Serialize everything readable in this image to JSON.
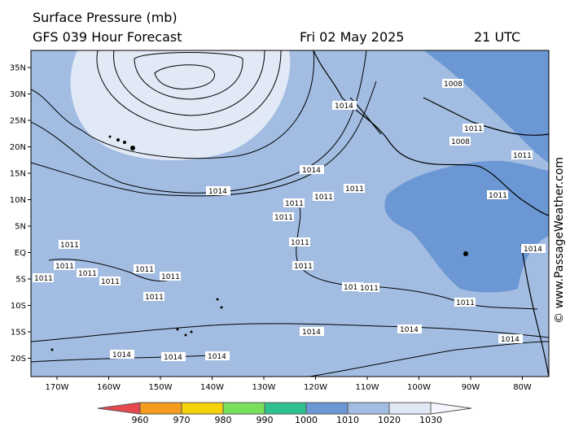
{
  "header": {
    "title_line1": "Surface Pressure (mb)",
    "title_line2": "GFS 039 Hour Forecast",
    "date": "Fri 02 May 2025",
    "time": "21 UTC"
  },
  "credit": "© www.PassageWeather.com",
  "axes": {
    "lat_labels": [
      "35N",
      "30N",
      "25N",
      "20N",
      "15N",
      "10N",
      "5N",
      "EQ",
      "5S",
      "10S",
      "15S",
      "20S"
    ],
    "lon_labels": [
      "170W",
      "160W",
      "150W",
      "140W",
      "130W",
      "120W",
      "110W",
      "100W",
      "90W",
      "80W"
    ]
  },
  "colorbar": {
    "labels": [
      "960",
      "970",
      "980",
      "990",
      "1000",
      "1010",
      "1020",
      "1030"
    ],
    "colors": [
      "#e8474d",
      "#f39c1d",
      "#f5d20a",
      "#78e05a",
      "#2fc28f",
      "#6b97d4",
      "#a3bde2",
      "#e1e9f6"
    ]
  },
  "isobar_labels": [
    "1014",
    "1014",
    "1014",
    "1011",
    "1011",
    "1011",
    "1011",
    "1011",
    "1011",
    "1011",
    "1011",
    "1011",
    "1011",
    "1011",
    "1011",
    "1011",
    "1011",
    "1011",
    "1011",
    "1011",
    "1014",
    "1014",
    "1014",
    "1014",
    "1014",
    "1014",
    "1011",
    "1011",
    "1008",
    "1008",
    "1011",
    "1014"
  ]
}
